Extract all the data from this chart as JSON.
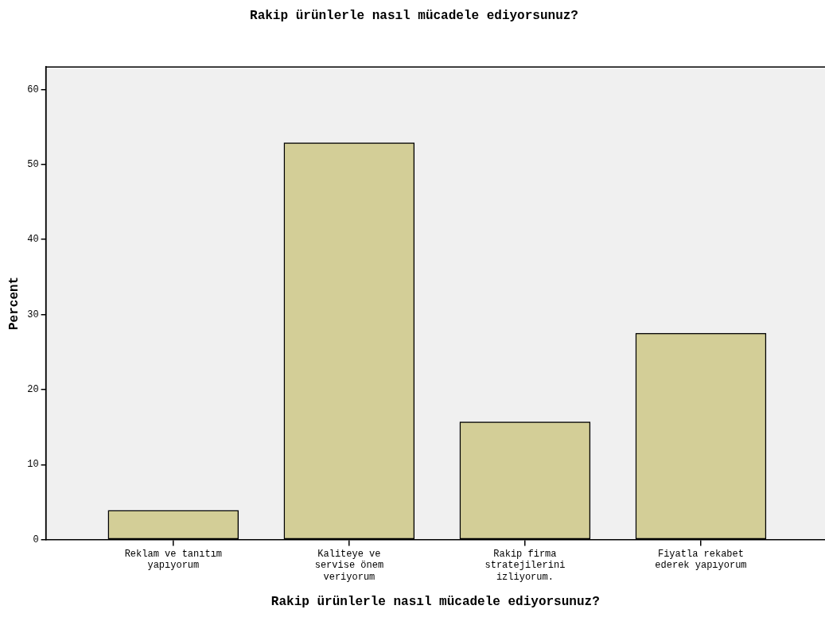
{
  "chart_data": {
    "type": "bar",
    "title": "Rakip ürünlerle nasıl mücadele ediyorsunuz?",
    "xlabel": "Rakip ürünlerle nasıl mücadele ediyorsunuz?",
    "ylabel": "Percent",
    "categories": [
      "Reklam ve tanıtım yapıyorum",
      "Kaliteye ve servise önem veriyorum",
      "Rakip firma stratejilerini izliyorum.",
      "Fiyatla rekabet ederek yapıyorum"
    ],
    "values": [
      3.9,
      52.9,
      15.7,
      27.5
    ],
    "color": "#d3ce97",
    "ylim": [
      0,
      63
    ],
    "yticks": [
      0,
      10,
      20,
      30,
      40,
      50,
      60
    ],
    "grid": false,
    "legend": false
  }
}
